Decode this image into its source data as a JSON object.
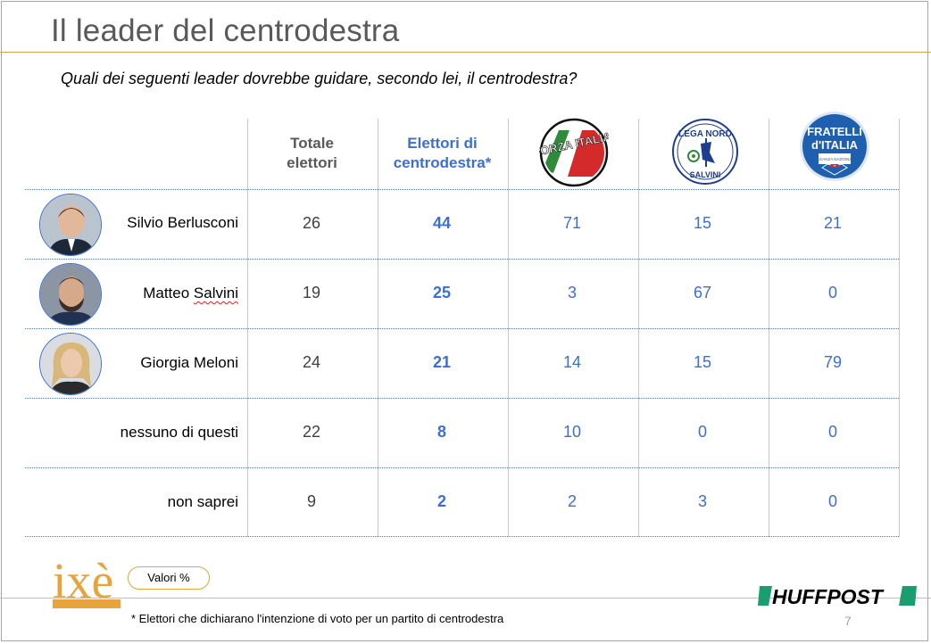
{
  "title": "Il leader del centrodestra",
  "question": "Quali dei seguenti leader dovrebbe guidare, secondo lei, il centrodestra?",
  "colors": {
    "accent_blue": "#3a6fd8",
    "title_gray": "#595959",
    "ixe_orange": "#e8a33c",
    "huff_green": "#1a9e6e"
  },
  "chart_data": {
    "type": "table",
    "columns": [
      {
        "key": "totale",
        "label_line1": "Totale",
        "label_line2": "elettori"
      },
      {
        "key": "centrodestra",
        "label_line1": "Elettori di",
        "label_line2": "centrodestra*"
      },
      {
        "key": "forza_italia",
        "logo": "forza-italia-logo",
        "logo_text": "FORZA ITALIA"
      },
      {
        "key": "lega_nord",
        "logo": "lega-nord-logo",
        "logo_text_top": "LEGA NORD",
        "logo_text_bottom": "SALVINI"
      },
      {
        "key": "fratelli_italia",
        "logo": "fratelli-italia-logo",
        "logo_text_top": "FRATELLI",
        "logo_text_mid": "d'ITALIA",
        "logo_text_bottom": "ALLEANZA NAZIONALE"
      }
    ],
    "rows": [
      {
        "label": "Silvio Berlusconi",
        "photo": "berlusconi-photo",
        "values": [
          26,
          44,
          71,
          15,
          21
        ]
      },
      {
        "label_first": "Matteo ",
        "label_last": "Salvini",
        "photo": "salvini-photo",
        "values": [
          19,
          25,
          3,
          67,
          0
        ]
      },
      {
        "label": "Giorgia Meloni",
        "photo": "meloni-photo",
        "values": [
          24,
          21,
          14,
          15,
          79
        ]
      },
      {
        "label": "nessuno di questi",
        "values": [
          22,
          8,
          10,
          0,
          0
        ]
      },
      {
        "label": "non saprei",
        "values": [
          9,
          2,
          2,
          3,
          0
        ]
      }
    ],
    "unit": "%"
  },
  "footer": {
    "brand": "ixè",
    "badge": "Valori %",
    "footnote": "* Elettori che dichiarano l'intenzione di voto per un partito di centrodestra",
    "publisher": "HUFFPOST",
    "page": "7"
  }
}
